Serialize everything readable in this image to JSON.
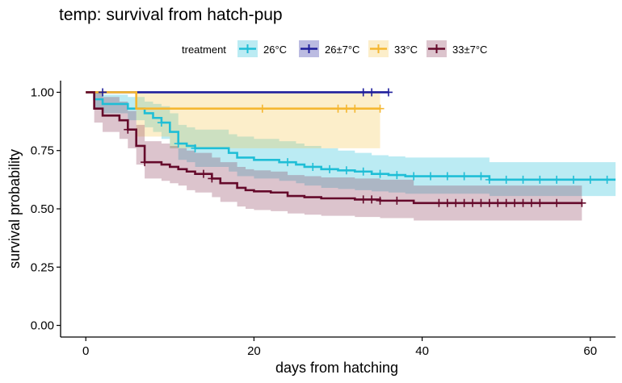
{
  "chart_data": {
    "type": "line",
    "subtype": "kaplan-meier",
    "title": "temp: survival from hatch-pup",
    "xlabel": "days from hatching",
    "ylabel": "survival probability",
    "xlim": [
      -3,
      63
    ],
    "ylim": [
      -0.05,
      1.05
    ],
    "xticks": [
      0,
      20,
      40,
      60
    ],
    "yticks": [
      0.0,
      0.25,
      0.5,
      0.75,
      1.0
    ],
    "ytick_labels": [
      "0.00",
      "0.25",
      "0.50",
      "0.75",
      "1.00"
    ],
    "grid": false,
    "legend": {
      "title": "treatment",
      "position": "top",
      "entries": [
        "26°C",
        "26±7°C",
        "33°C",
        "33±7°C"
      ]
    },
    "series": [
      {
        "name": "26°C",
        "color": "#1fbed6",
        "ci_color": "#1fbed6",
        "steps": [
          [
            0,
            1.0
          ],
          [
            1,
            0.97
          ],
          [
            2,
            0.95
          ],
          [
            5,
            0.93
          ],
          [
            7,
            0.91
          ],
          [
            8,
            0.89
          ],
          [
            9,
            0.87
          ],
          [
            10,
            0.83
          ],
          [
            11,
            0.78
          ],
          [
            12,
            0.77
          ],
          [
            13,
            0.76
          ],
          [
            17,
            0.74
          ],
          [
            18,
            0.72
          ],
          [
            20,
            0.71
          ],
          [
            23,
            0.7
          ],
          [
            25,
            0.69
          ],
          [
            26,
            0.68
          ],
          [
            28,
            0.67
          ],
          [
            30,
            0.665
          ],
          [
            32,
            0.66
          ],
          [
            34,
            0.65
          ],
          [
            36,
            0.645
          ],
          [
            38,
            0.64
          ],
          [
            48,
            0.625
          ],
          [
            63,
            0.625
          ]
        ],
        "ci_upper": [
          [
            0,
            1.0
          ],
          [
            1,
            1.0
          ],
          [
            2,
            0.99
          ],
          [
            5,
            0.98
          ],
          [
            7,
            0.96
          ],
          [
            8,
            0.95
          ],
          [
            9,
            0.94
          ],
          [
            10,
            0.91
          ],
          [
            11,
            0.86
          ],
          [
            12,
            0.85
          ],
          [
            13,
            0.84
          ],
          [
            17,
            0.82
          ],
          [
            18,
            0.81
          ],
          [
            20,
            0.8
          ],
          [
            23,
            0.79
          ],
          [
            25,
            0.78
          ],
          [
            26,
            0.77
          ],
          [
            28,
            0.76
          ],
          [
            30,
            0.75
          ],
          [
            32,
            0.74
          ],
          [
            34,
            0.73
          ],
          [
            36,
            0.725
          ],
          [
            38,
            0.72
          ],
          [
            48,
            0.7
          ],
          [
            63,
            0.7
          ]
        ],
        "ci_lower": [
          [
            0,
            1.0
          ],
          [
            1,
            0.93
          ],
          [
            2,
            0.91
          ],
          [
            5,
            0.88
          ],
          [
            7,
            0.85
          ],
          [
            8,
            0.83
          ],
          [
            9,
            0.8
          ],
          [
            10,
            0.76
          ],
          [
            11,
            0.71
          ],
          [
            12,
            0.7
          ],
          [
            13,
            0.68
          ],
          [
            17,
            0.66
          ],
          [
            18,
            0.64
          ],
          [
            20,
            0.63
          ],
          [
            23,
            0.62
          ],
          [
            25,
            0.61
          ],
          [
            26,
            0.6
          ],
          [
            28,
            0.59
          ],
          [
            30,
            0.585
          ],
          [
            32,
            0.58
          ],
          [
            34,
            0.575
          ],
          [
            36,
            0.57
          ],
          [
            38,
            0.565
          ],
          [
            48,
            0.555
          ],
          [
            63,
            0.555
          ]
        ],
        "censor_x": [
          9,
          11,
          13,
          24,
          27,
          29,
          31,
          33,
          35,
          37,
          39,
          41,
          43,
          45,
          47,
          48,
          50,
          52,
          54,
          56,
          58,
          60,
          62
        ]
      },
      {
        "name": "26±7°C",
        "color": "#1f1f9c",
        "ci_color": "#1f1f9c",
        "steps": [
          [
            0,
            1.0
          ],
          [
            36,
            1.0
          ]
        ],
        "ci_upper": [
          [
            0,
            1.0
          ],
          [
            36,
            1.0
          ]
        ],
        "ci_lower": [
          [
            0,
            1.0
          ],
          [
            36,
            1.0
          ]
        ],
        "censor_x": [
          2,
          33,
          34,
          36
        ]
      },
      {
        "name": "33°C",
        "color": "#f5b731",
        "ci_color": "#f5c84f",
        "steps": [
          [
            0,
            1.0
          ],
          [
            6,
            0.93
          ],
          [
            35,
            0.93
          ]
        ],
        "ci_upper": [
          [
            0,
            1.0
          ],
          [
            35,
            1.0
          ]
        ],
        "ci_lower": [
          [
            0,
            1.0
          ],
          [
            6,
            0.81
          ],
          [
            9,
            0.81
          ],
          [
            10,
            0.76
          ],
          [
            35,
            0.76
          ]
        ],
        "censor_x": [
          21,
          30,
          31,
          32,
          35
        ]
      },
      {
        "name": "33±7°C",
        "color": "#650a2b",
        "ci_color": "#8b3a5a",
        "steps": [
          [
            0,
            1.0
          ],
          [
            1,
            0.93
          ],
          [
            2,
            0.9
          ],
          [
            4,
            0.88
          ],
          [
            5,
            0.84
          ],
          [
            6,
            0.77
          ],
          [
            7,
            0.7
          ],
          [
            9,
            0.69
          ],
          [
            10,
            0.68
          ],
          [
            11,
            0.67
          ],
          [
            12,
            0.66
          ],
          [
            13,
            0.65
          ],
          [
            15,
            0.63
          ],
          [
            16,
            0.61
          ],
          [
            18,
            0.59
          ],
          [
            19,
            0.58
          ],
          [
            20,
            0.575
          ],
          [
            22,
            0.57
          ],
          [
            24,
            0.555
          ],
          [
            26,
            0.55
          ],
          [
            28,
            0.545
          ],
          [
            32,
            0.54
          ],
          [
            35,
            0.535
          ],
          [
            39,
            0.525
          ],
          [
            59,
            0.525
          ]
        ],
        "ci_upper": [
          [
            0,
            1.0
          ],
          [
            1,
            1.0
          ],
          [
            2,
            0.98
          ],
          [
            4,
            0.96
          ],
          [
            5,
            0.92
          ],
          [
            6,
            0.86
          ],
          [
            7,
            0.79
          ],
          [
            9,
            0.78
          ],
          [
            10,
            0.77
          ],
          [
            11,
            0.76
          ],
          [
            12,
            0.75
          ],
          [
            13,
            0.74
          ],
          [
            15,
            0.72
          ],
          [
            16,
            0.7
          ],
          [
            18,
            0.68
          ],
          [
            19,
            0.67
          ],
          [
            20,
            0.665
          ],
          [
            22,
            0.66
          ],
          [
            24,
            0.645
          ],
          [
            26,
            0.64
          ],
          [
            28,
            0.635
          ],
          [
            32,
            0.63
          ],
          [
            35,
            0.625
          ],
          [
            39,
            0.6
          ],
          [
            59,
            0.6
          ]
        ],
        "ci_lower": [
          [
            0,
            1.0
          ],
          [
            1,
            0.87
          ],
          [
            2,
            0.83
          ],
          [
            4,
            0.8
          ],
          [
            5,
            0.76
          ],
          [
            6,
            0.69
          ],
          [
            7,
            0.63
          ],
          [
            9,
            0.62
          ],
          [
            10,
            0.61
          ],
          [
            11,
            0.6
          ],
          [
            12,
            0.58
          ],
          [
            13,
            0.57
          ],
          [
            15,
            0.55
          ],
          [
            16,
            0.53
          ],
          [
            18,
            0.51
          ],
          [
            19,
            0.5
          ],
          [
            20,
            0.495
          ],
          [
            22,
            0.49
          ],
          [
            24,
            0.48
          ],
          [
            26,
            0.475
          ],
          [
            28,
            0.47
          ],
          [
            32,
            0.465
          ],
          [
            35,
            0.46
          ],
          [
            39,
            0.45
          ],
          [
            59,
            0.45
          ]
        ],
        "censor_x": [
          5,
          7,
          14,
          15,
          33,
          34,
          35,
          37,
          42,
          43,
          44,
          45,
          46,
          47,
          48,
          49,
          50,
          51,
          52,
          53,
          54,
          56,
          59
        ]
      }
    ]
  }
}
